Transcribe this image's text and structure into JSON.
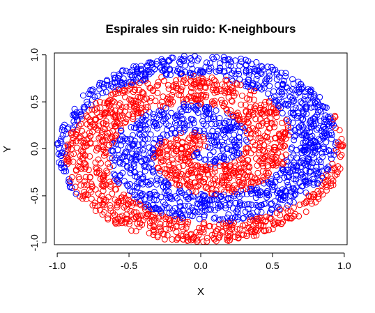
{
  "chart_data": {
    "type": "scatter",
    "title": "Espirales sin ruido: K-neighbours",
    "xlabel": "X",
    "ylabel": "Y",
    "xlim": [
      -1.02,
      1.02
    ],
    "ylim": [
      -1.02,
      1.02
    ],
    "xticks": [
      -1.0,
      -0.5,
      0.0,
      0.5,
      1.0
    ],
    "yticks": [
      -1.0,
      -0.5,
      0.0,
      0.5,
      1.0
    ],
    "xtick_labels": [
      "-1.0",
      "-0.5",
      "0.0",
      "0.5",
      "1.0"
    ],
    "ytick_labels": [
      "-1.0",
      "-0.5",
      "0.0",
      "0.5",
      "1.0"
    ],
    "grid": false,
    "legend": "none",
    "marker": "open-circle",
    "region": "unit disc",
    "series": [
      {
        "color": "#ff0000",
        "classification": "red class",
        "spiral_start_angle_rad": 0.0
      },
      {
        "color": "#0000ff",
        "classification": "blue class",
        "spiral_start_angle_rad": 3.14159
      }
    ]
  }
}
